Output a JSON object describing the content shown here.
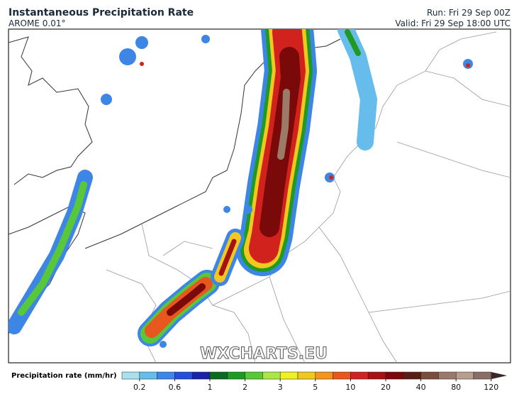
{
  "header": {
    "title": "Instantaneous Precipitation Rate",
    "model": "AROME 0.01°",
    "run": "Run: Fri 29 Sep 00Z",
    "valid": "Valid: Fri 29 Sep 18:00 UTC"
  },
  "watermark": "WXCHARTS.EU",
  "legend": {
    "label": "Precipitation rate (mm/hr)",
    "ticks": [
      0.2,
      0.6,
      1,
      2,
      3,
      5,
      10,
      20,
      40,
      80,
      120
    ],
    "colors": [
      "#a8e0ee",
      "#66bdec",
      "#3d86e6",
      "#2350d8",
      "#1a22a6",
      "#0c6a20",
      "#1f9a22",
      "#58c83a",
      "#a8e64a",
      "#f2f01e",
      "#f2c81e",
      "#f29420",
      "#e8581e",
      "#d2221e",
      "#a41212",
      "#7a0a0a",
      "#5c1c16",
      "#7c4c3c",
      "#9c7a6a",
      "#b89c8e",
      "#8a6e66",
      "#3a2626"
    ]
  }
}
